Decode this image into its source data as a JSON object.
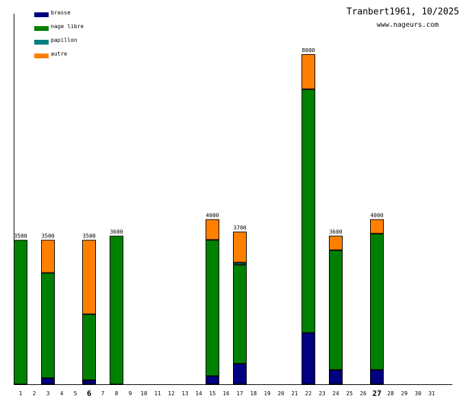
{
  "header": {
    "title": "Tranbert1961, 10/2025",
    "site": "www.nageurs.com"
  },
  "legend": [
    {
      "label": "brasse",
      "color": "#000080"
    },
    {
      "label": "nage libre",
      "color": "#008000"
    },
    {
      "label": "papillon",
      "color": "#008080"
    },
    {
      "label": "autre",
      "color": "#ff8000"
    }
  ],
  "chart_data": {
    "type": "bar",
    "stacked": true,
    "title": "Tranbert1961, 10/2025",
    "xlabel": "",
    "ylabel": "",
    "ylim": [
      0,
      8000
    ],
    "categories": [
      "1",
      "2",
      "3",
      "4",
      "5",
      "6",
      "7",
      "8",
      "9",
      "10",
      "11",
      "12",
      "13",
      "14",
      "15",
      "16",
      "17",
      "18",
      "19",
      "20",
      "21",
      "22",
      "23",
      "24",
      "25",
      "26",
      "27",
      "28",
      "29",
      "30",
      "31"
    ],
    "highlighted_days": [
      "6",
      "27"
    ],
    "series": [
      {
        "name": "brasse",
        "color": "#000080",
        "values": [
          0,
          0,
          150,
          0,
          0,
          100,
          0,
          0,
          0,
          0,
          0,
          0,
          0,
          0,
          200,
          0,
          500,
          0,
          0,
          0,
          0,
          1250,
          0,
          350,
          0,
          0,
          350,
          0,
          0,
          0,
          0
        ]
      },
      {
        "name": "nage libre",
        "color": "#008000",
        "values": [
          3500,
          0,
          2550,
          0,
          0,
          1600,
          0,
          3600,
          0,
          0,
          0,
          0,
          0,
          0,
          3300,
          0,
          2400,
          0,
          0,
          0,
          0,
          5900,
          0,
          2900,
          0,
          0,
          3300,
          0,
          0,
          0,
          0
        ]
      },
      {
        "name": "papillon",
        "color": "#008080",
        "values": [
          0,
          0,
          0,
          0,
          0,
          0,
          0,
          0,
          0,
          0,
          0,
          0,
          0,
          0,
          0,
          0,
          50,
          0,
          0,
          0,
          0,
          0,
          0,
          0,
          0,
          0,
          0,
          0,
          0,
          0,
          0
        ]
      },
      {
        "name": "autre",
        "color": "#ff8000",
        "values": [
          0,
          0,
          800,
          0,
          0,
          1800,
          0,
          0,
          0,
          0,
          0,
          0,
          0,
          0,
          500,
          0,
          750,
          0,
          0,
          0,
          0,
          850,
          0,
          350,
          0,
          0,
          350,
          0,
          0,
          0,
          0
        ]
      }
    ],
    "totals": [
      3500,
      0,
      3500,
      0,
      0,
      3500,
      0,
      3600,
      0,
      0,
      0,
      0,
      0,
      0,
      4000,
      0,
      3700,
      0,
      0,
      0,
      0,
      8000,
      0,
      3600,
      0,
      0,
      4000,
      0,
      0,
      0,
      0
    ]
  }
}
